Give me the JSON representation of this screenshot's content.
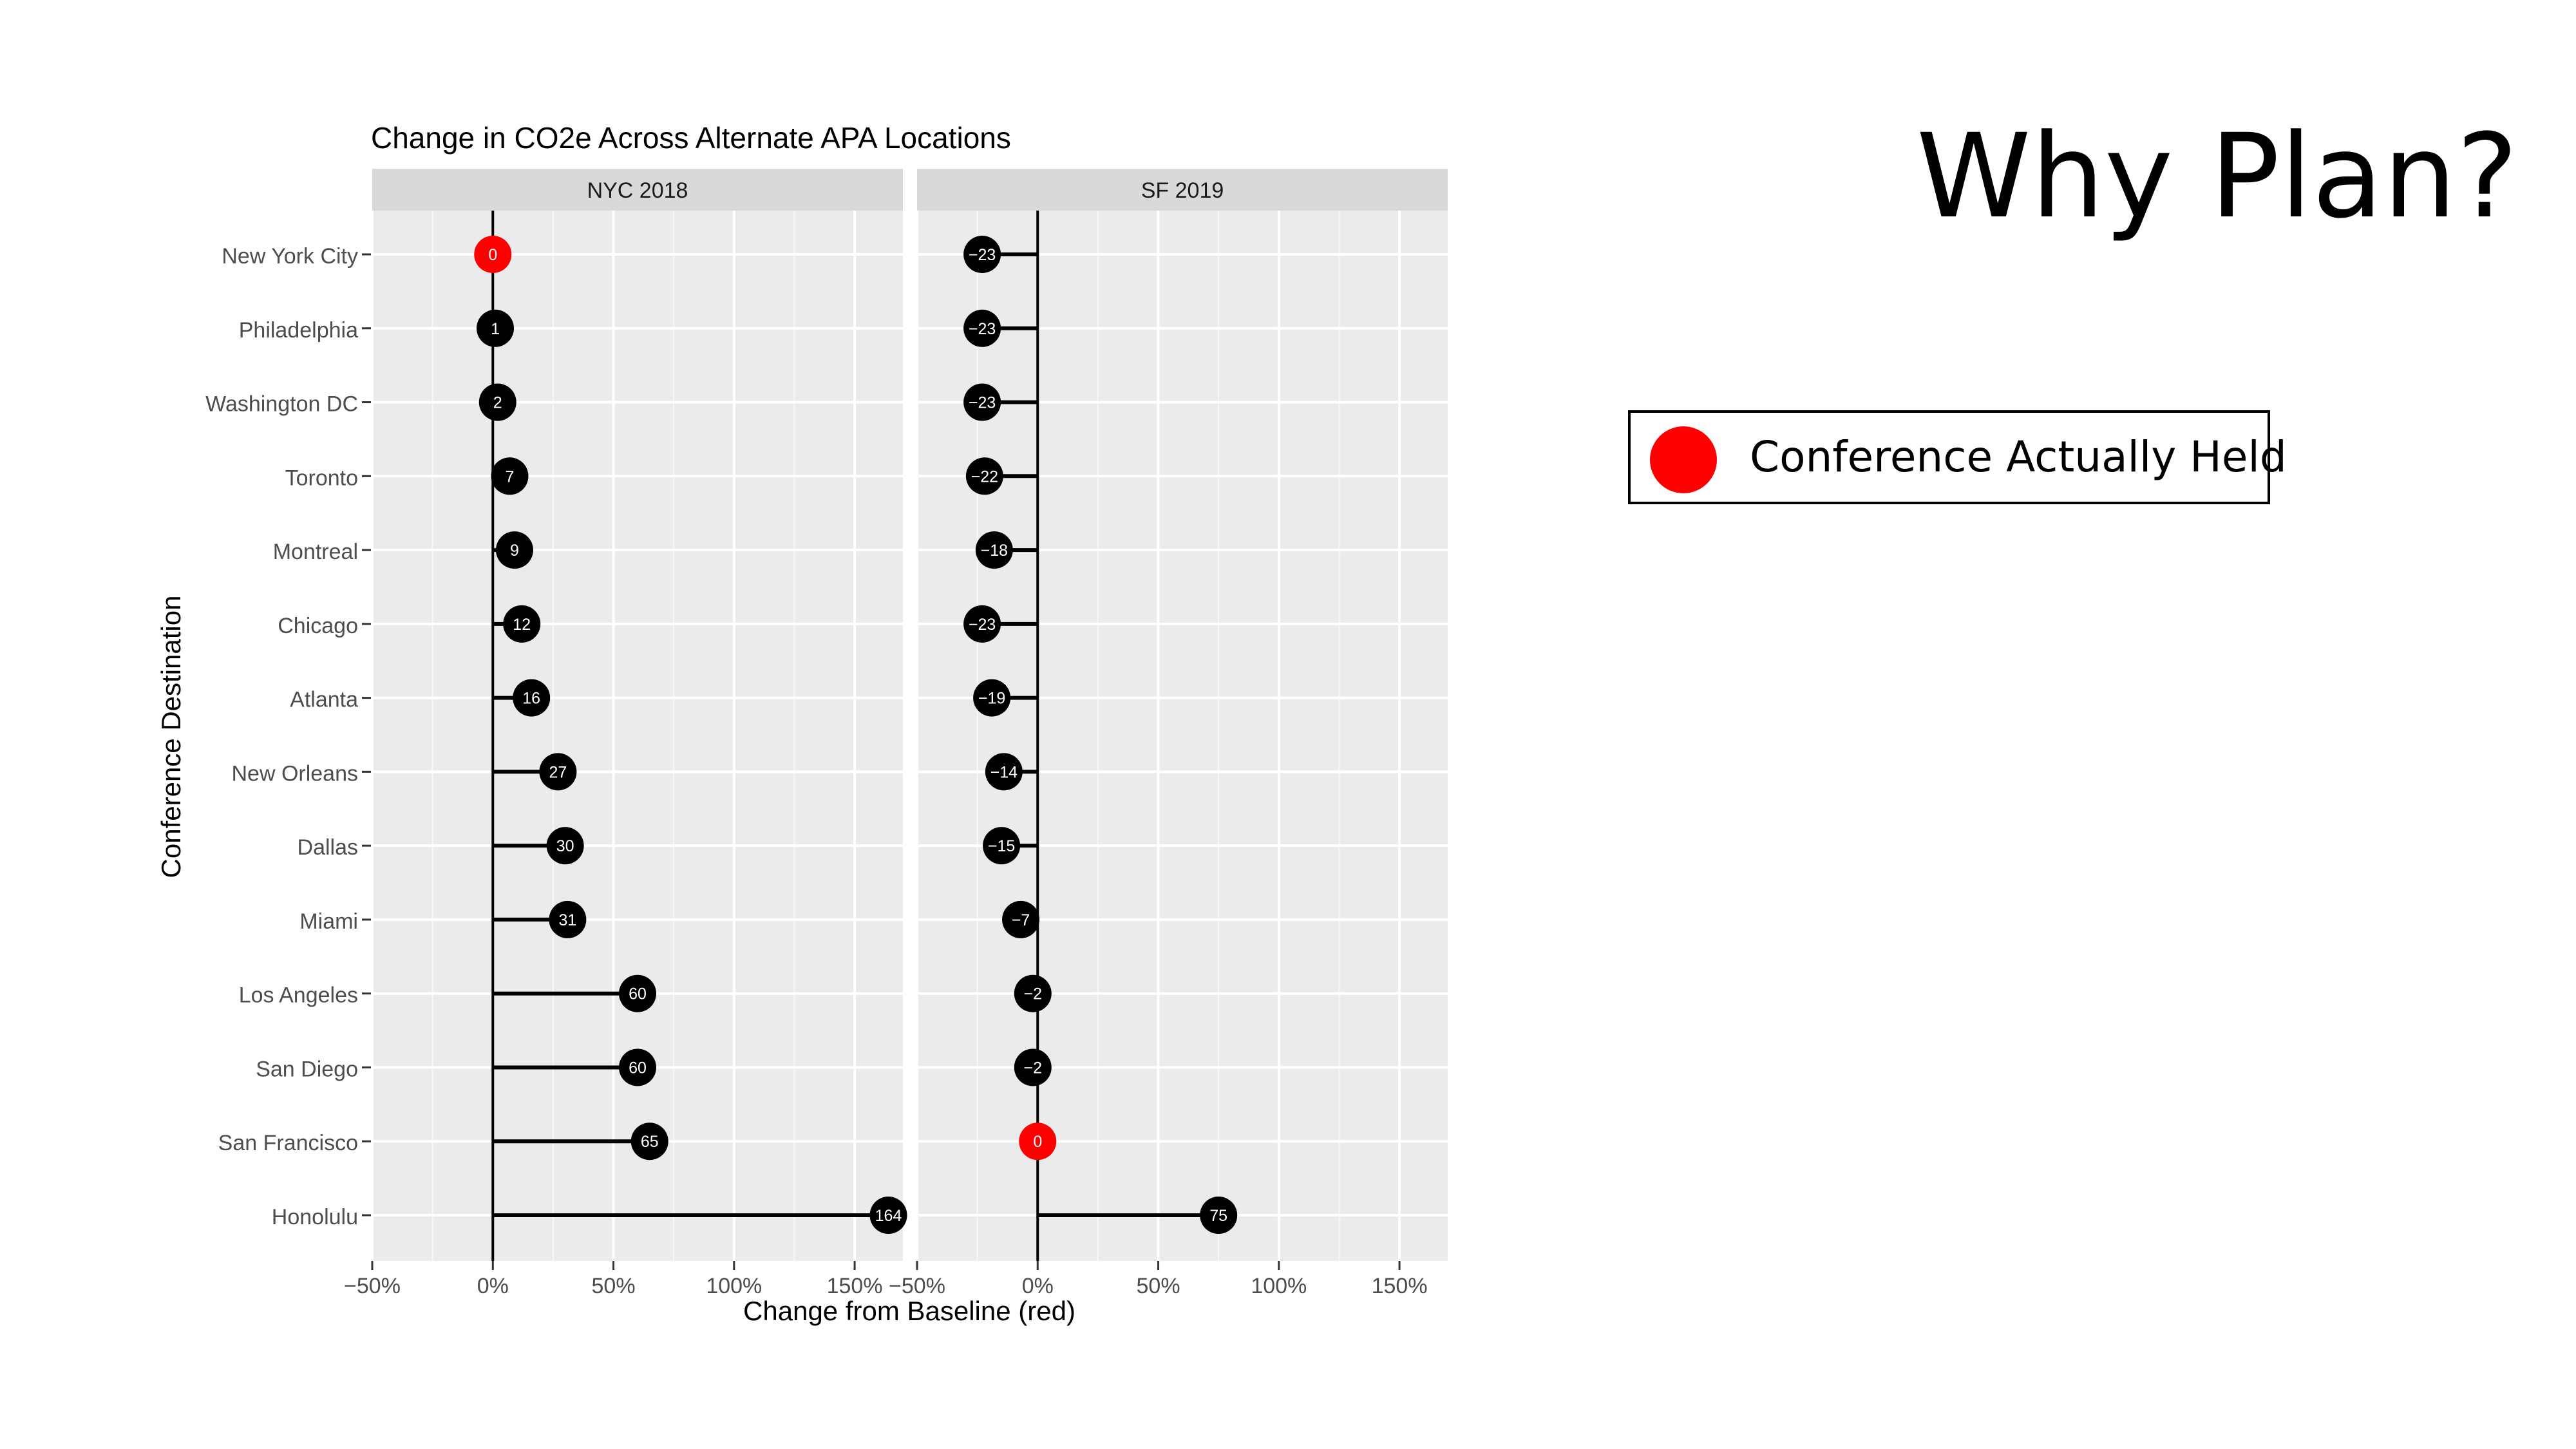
{
  "slide": {
    "title": "Why Plan?"
  },
  "legend": {
    "label": "Conference Actually Held",
    "marker_color": "#ff0000"
  },
  "chart_data": {
    "type": "lollipop",
    "title": "Change in CO2e Across Alternate APA Locations",
    "xlabel": "Change from Baseline (red)",
    "ylabel": "Conference Destination",
    "xlim": [
      -50,
      170
    ],
    "x_ticks": [
      -50,
      0,
      50,
      100,
      150
    ],
    "x_tick_labels": [
      "−50%",
      "0%",
      "50%",
      "100%",
      "150%"
    ],
    "categories": [
      "New York City",
      "Philadelphia",
      "Washington DC",
      "Toronto",
      "Montreal",
      "Chicago",
      "Atlanta",
      "New Orleans",
      "Dallas",
      "Miami",
      "Los Angeles",
      "San Diego",
      "San Francisco",
      "Honolulu"
    ],
    "grid": true,
    "highlight_color": "#ff0000",
    "point_color": "#000000",
    "panels": [
      {
        "name": "NYC 2018",
        "values": [
          0,
          1,
          2,
          7,
          9,
          12,
          16,
          27,
          30,
          31,
          60,
          60,
          65,
          164
        ],
        "labels": [
          "0",
          "1",
          "2",
          "7",
          "9",
          "12",
          "16",
          "27",
          "30",
          "31",
          "60",
          "60",
          "65",
          "164"
        ],
        "highlight_index": 0
      },
      {
        "name": "SF 2019",
        "values": [
          -23,
          -23,
          -23,
          -22,
          -18,
          -23,
          -19,
          -14,
          -15,
          -7,
          -2,
          -2,
          0,
          75
        ],
        "labels": [
          "−23",
          "−23",
          "−23",
          "−22",
          "−18",
          "−23",
          "−19",
          "−14",
          "−15",
          "−7",
          "−2",
          "−2",
          "0",
          "75"
        ],
        "highlight_index": 12
      }
    ]
  }
}
